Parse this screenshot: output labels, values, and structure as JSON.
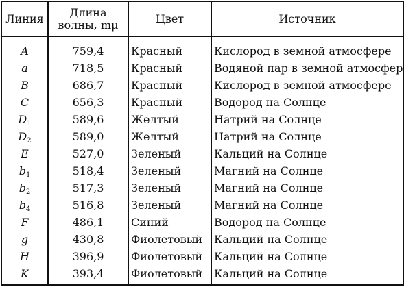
{
  "headers": {
    "line": "Линия",
    "wavelength_line1": "Длина",
    "wavelength_line2": "волны, mμ",
    "color": "Цвет",
    "source": "Источник"
  },
  "rows": [
    {
      "line": "A",
      "sub": "",
      "wavelength": "759,4",
      "color": "Красный",
      "source": "Кислород в земной атмосфере"
    },
    {
      "line": "a",
      "sub": "",
      "wavelength": "718,5",
      "color": "Красный",
      "source": "Водяной пар в земной атмосфере"
    },
    {
      "line": "B",
      "sub": "",
      "wavelength": "686,7",
      "color": "Красный",
      "source": "Кислород в земной атмосфере"
    },
    {
      "line": "C",
      "sub": "",
      "wavelength": "656,3",
      "color": "Красный",
      "source": "Водород на Солнце"
    },
    {
      "line": "D",
      "sub": "1",
      "wavelength": "589,6",
      "color": "Желтый",
      "source": "Натрий на Солнце"
    },
    {
      "line": "D",
      "sub": "2",
      "wavelength": "589,0",
      "color": "Желтый",
      "source": "Натрий на Солнце"
    },
    {
      "line": "E",
      "sub": "",
      "wavelength": "527,0",
      "color": "Зеленый",
      "source": "Кальций на Солнце"
    },
    {
      "line": "b",
      "sub": "1",
      "wavelength": "518,4",
      "color": "Зеленый",
      "source": "Магний на Солнце"
    },
    {
      "line": "b",
      "sub": "2",
      "wavelength": "517,3",
      "color": "Зеленый",
      "source": "Магний на Солнце"
    },
    {
      "line": "b",
      "sub": "4",
      "wavelength": "516,8",
      "color": "Зеленый",
      "source": "Магний на Солнце"
    },
    {
      "line": "F",
      "sub": "",
      "wavelength": "486,1",
      "color": "Синий",
      "source": "Водород на Солнце"
    },
    {
      "line": "g",
      "sub": "",
      "wavelength": "430,8",
      "color": "Фиолетовый",
      "source": "Кальций на Солнце"
    },
    {
      "line": "H",
      "sub": "",
      "wavelength": "396,9",
      "color": "Фиолетовый",
      "source": "Кальций на Солнце"
    },
    {
      "line": "K",
      "sub": "",
      "wavelength": "393,4",
      "color": "Фиолетовый",
      "source": "Кальций на Солнце"
    }
  ]
}
